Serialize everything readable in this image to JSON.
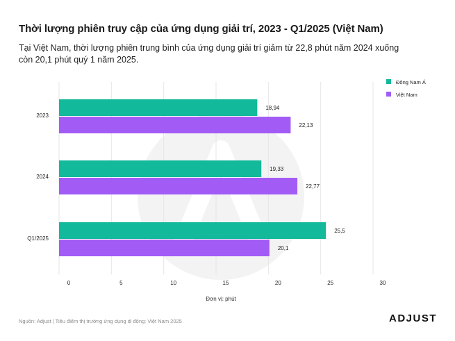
{
  "header": {
    "title": "Thời lượng phiên truy cập của ứng dụng giải trí, 2023 - Q1/2025 (Việt Nam)",
    "subtitle": "Tại Việt Nam, thời lượng phiên trung bình của ứng dụng giải trí giảm từ 22,8 phút năm 2024 xuống còn 20,1 phút quý 1 năm 2025."
  },
  "footer": {
    "source": "Nguồn: Adjust | Tiêu điểm thị trường ứng dụng di động: Việt Nam 2025",
    "logo": "ADJUST"
  },
  "colors": {
    "southeast_asia": "#12b99a",
    "vietnam": "#a25cf5",
    "grid": "#e6e6e6",
    "watermark": "#f3f3f3"
  },
  "chart_data": {
    "type": "bar",
    "orientation": "horizontal",
    "categories": [
      "2023",
      "2024",
      "Q1/2025"
    ],
    "series": [
      {
        "name": "Đông Nam Á",
        "values": [
          18.94,
          19.33,
          25.5
        ],
        "labels": [
          "18,94",
          "19,33",
          "25,5"
        ],
        "color": "#12b99a"
      },
      {
        "name": "Việt Nam",
        "values": [
          22.13,
          22.77,
          20.1
        ],
        "labels": [
          "22,13",
          "22,77",
          "20,1"
        ],
        "color": "#a25cf5"
      }
    ],
    "xlim": [
      0,
      30
    ],
    "xticks": [
      "0",
      "5",
      "10",
      "15",
      "20",
      "25",
      "30"
    ],
    "xticks_values": [
      0,
      5,
      10,
      15,
      20,
      25,
      30
    ],
    "xlabel": "Đơn vị: phút",
    "ylabel": "",
    "legend": "top-right",
    "grid": true
  }
}
